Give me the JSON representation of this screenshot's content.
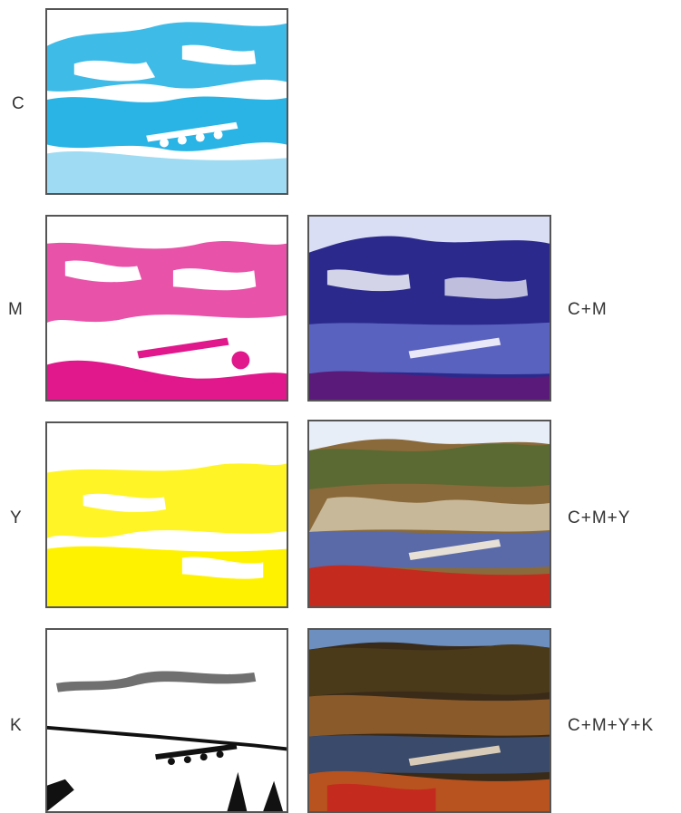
{
  "labels": {
    "c": "C",
    "m": "M",
    "y": "Y",
    "k": "K",
    "cm": "C+M",
    "cmy": "C+M+Y",
    "cmyk": "C+M+Y+K"
  },
  "colors": {
    "cyan": "#2ab4e6",
    "magenta": "#e0188c",
    "yellow": "#fff200",
    "black": "#111111",
    "cm_dark": "#2b2a8c",
    "cm_water": "#5a62c0",
    "cmy_sky": "#e8eef8",
    "cmy_mid": "#8a6a3a",
    "cmy_red": "#c42a1e",
    "cmyk_sky": "#6c8fbf",
    "cmyk_hill": "#3a2a18",
    "cmyk_orange": "#b8521e"
  }
}
